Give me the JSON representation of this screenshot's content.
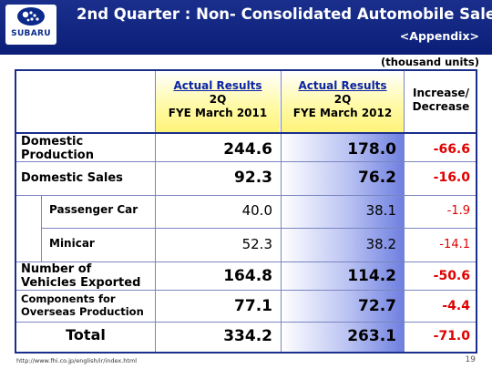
{
  "header": {
    "title": "2nd Quarter : Non- Consolidated Automobile Sales",
    "subtitle": "<Appendix>",
    "logo_text": "SUBARU"
  },
  "units": "(thousand units)",
  "table": {
    "columns": [
      {
        "line1": "Actual Results",
        "line2": "2Q",
        "line3": "FYE March 2011"
      },
      {
        "line1": "Actual Results",
        "line2": "2Q",
        "line3": "FYE March 2012"
      },
      {
        "line1": "Increase/",
        "line2": "Decrease"
      }
    ],
    "rows": [
      {
        "label1": "Domestic",
        "label2": "Production",
        "v2011": "244.6",
        "v2012": "178.0",
        "diff": "-66.6"
      },
      {
        "label1": "Domestic Sales",
        "v2011": "92.3",
        "v2012": "76.2",
        "diff": "-16.0"
      },
      {
        "label1": "Passenger Car",
        "v2011": "40.0",
        "v2012": "38.1",
        "diff": "-1.9"
      },
      {
        "label1": "Minicar",
        "v2011": "52.3",
        "v2012": "38.2",
        "diff": "-14.1"
      },
      {
        "label1": "Number of",
        "label2": "Vehicles Exported",
        "v2011": "164.8",
        "v2012": "114.2",
        "diff": "-50.6"
      },
      {
        "label1": "Components for",
        "label2": "Overseas Production",
        "v2011": "77.1",
        "v2012": "72.7",
        "diff": "-4.4"
      },
      {
        "label1": "Total",
        "v2011": "334.2",
        "v2012": "263.1",
        "diff": "-71.0"
      }
    ]
  },
  "footer": {
    "url": "http://www.fhi.co.jp/english/ir/index.html",
    "page": "19"
  }
}
